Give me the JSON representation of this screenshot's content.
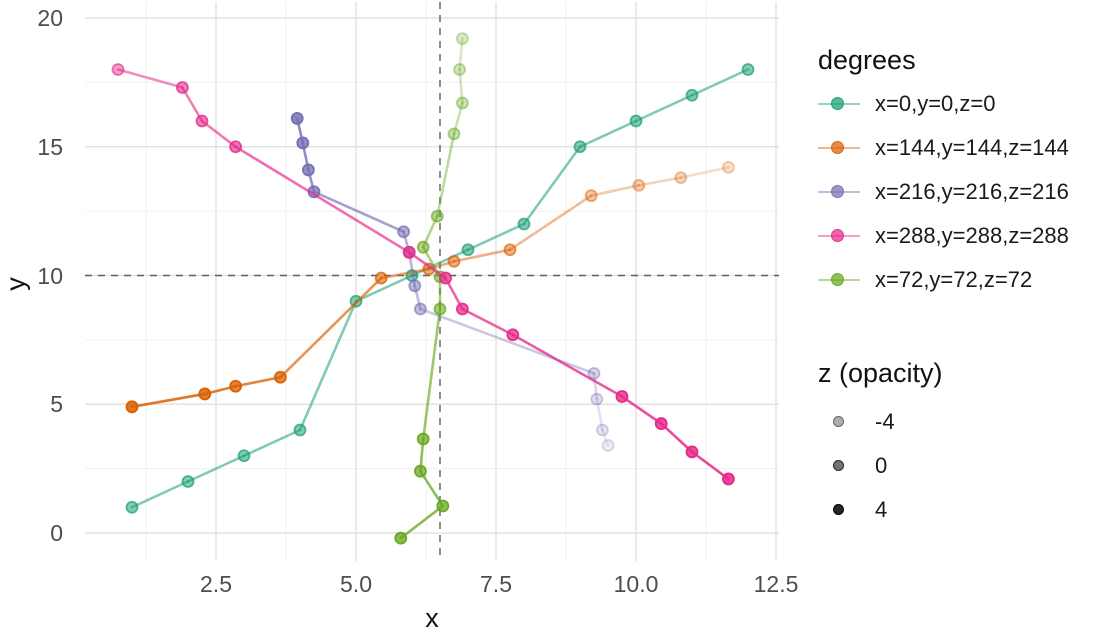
{
  "chart_data": {
    "type": "line",
    "title": "",
    "xlabel": "x",
    "ylabel": "y",
    "xlim": [
      0.16,
      12.55
    ],
    "ylim": [
      -1.09,
      20.62
    ],
    "grid": true,
    "legend_position": "right",
    "x_ticks": {
      "values": [
        2.5,
        5.0,
        7.5,
        10.0,
        12.5
      ],
      "labels": [
        "2.5",
        "5.0",
        "7.5",
        "10.0",
        "12.5"
      ]
    },
    "y_ticks": {
      "values": [
        0,
        5,
        10,
        15,
        20
      ],
      "labels": [
        "0",
        "5",
        "10",
        "15",
        "20"
      ]
    },
    "x_minor": [
      1.25,
      3.75,
      6.25,
      8.75,
      11.25
    ],
    "y_minor": [
      2.5,
      7.5,
      12.5,
      17.5
    ],
    "reference_lines": {
      "vline_x": 6.5,
      "hline_y": 10,
      "style": "dashed",
      "color": "#5f5f5f"
    },
    "color_legend_title": "degrees",
    "opacity_legend": {
      "title": "z (opacity)",
      "key_color": "#000000",
      "entries": [
        {
          "label": "-4",
          "opacity": 0.32
        },
        {
          "label": "0",
          "opacity": 0.55
        },
        {
          "label": "4",
          "opacity": 0.85
        }
      ]
    },
    "series": [
      {
        "name": "x=0,y=0,z=0",
        "color": "#1B9E77",
        "draw_rank": 0,
        "points": [
          [
            1,
            1,
            0.6
          ],
          [
            2,
            2,
            0.6
          ],
          [
            3,
            3,
            0.6
          ],
          [
            4,
            4,
            0.6
          ],
          [
            5,
            9,
            0.6
          ],
          [
            6,
            10,
            0.6
          ],
          [
            7,
            11,
            0.6
          ],
          [
            8,
            12,
            0.6
          ],
          [
            9,
            15,
            0.6
          ],
          [
            10,
            16,
            0.6
          ],
          [
            11,
            17,
            0.6
          ],
          [
            12,
            18,
            0.6
          ]
        ]
      },
      {
        "name": "x=144,y=144,z=144",
        "color": "#D95F02",
        "draw_rank": 1,
        "points": [
          [
            1.0,
            4.9,
            0.95
          ],
          [
            2.3,
            5.4,
            0.9
          ],
          [
            2.85,
            5.7,
            0.86
          ],
          [
            3.65,
            6.05,
            0.82
          ],
          [
            5.45,
            9.9,
            0.62
          ],
          [
            6.3,
            10.25,
            0.58
          ],
          [
            6.75,
            10.55,
            0.55
          ],
          [
            7.75,
            11.0,
            0.52
          ],
          [
            9.2,
            13.1,
            0.38
          ],
          [
            10.05,
            13.5,
            0.33
          ],
          [
            10.8,
            13.8,
            0.27
          ],
          [
            11.65,
            14.2,
            0.2
          ]
        ]
      },
      {
        "name": "x=216,y=216,z=216",
        "color": "#7570B3",
        "draw_rank": 2,
        "points": [
          [
            3.95,
            16.1,
            0.92
          ],
          [
            4.05,
            15.15,
            0.88
          ],
          [
            4.15,
            14.1,
            0.84
          ],
          [
            4.25,
            13.25,
            0.8
          ],
          [
            5.85,
            11.7,
            0.62
          ],
          [
            5.95,
            10.9,
            0.58
          ],
          [
            6.05,
            9.6,
            0.54
          ],
          [
            6.15,
            8.7,
            0.5
          ],
          [
            9.25,
            6.2,
            0.32
          ],
          [
            9.3,
            5.2,
            0.26
          ],
          [
            9.4,
            4.0,
            0.2
          ],
          [
            9.5,
            3.4,
            0.14
          ]
        ]
      },
      {
        "name": "x=288,y=288,z=288",
        "color": "#E7298A",
        "draw_rank": 4,
        "points": [
          [
            0.75,
            18.0,
            0.5
          ],
          [
            1.9,
            17.3,
            0.64
          ],
          [
            2.25,
            16.0,
            0.67
          ],
          [
            2.85,
            15.0,
            0.7
          ],
          [
            5.95,
            10.9,
            0.76
          ],
          [
            6.6,
            9.9,
            0.78
          ],
          [
            6.9,
            8.7,
            0.8
          ],
          [
            7.8,
            7.7,
            0.82
          ],
          [
            9.75,
            5.3,
            0.88
          ],
          [
            10.45,
            4.25,
            0.9
          ],
          [
            11.0,
            3.15,
            0.93
          ],
          [
            11.65,
            2.1,
            0.95
          ]
        ]
      },
      {
        "name": "x=72,y=72,z=72",
        "color": "#66A61E",
        "draw_rank": 3,
        "points": [
          [
            5.8,
            -0.2,
            0.85
          ],
          [
            6.55,
            1.05,
            0.82
          ],
          [
            6.15,
            2.4,
            0.8
          ],
          [
            6.2,
            3.65,
            0.78
          ],
          [
            6.5,
            8.7,
            0.62
          ],
          [
            6.5,
            9.95,
            0.59
          ],
          [
            6.2,
            11.1,
            0.56
          ],
          [
            6.45,
            12.3,
            0.53
          ],
          [
            6.75,
            15.5,
            0.4
          ],
          [
            6.9,
            16.7,
            0.36
          ],
          [
            6.85,
            18.0,
            0.31
          ],
          [
            6.9,
            19.2,
            0.27
          ]
        ]
      }
    ],
    "grid_colors": {
      "major": "#E2E2E2",
      "minor": "#F0F0F0"
    }
  }
}
